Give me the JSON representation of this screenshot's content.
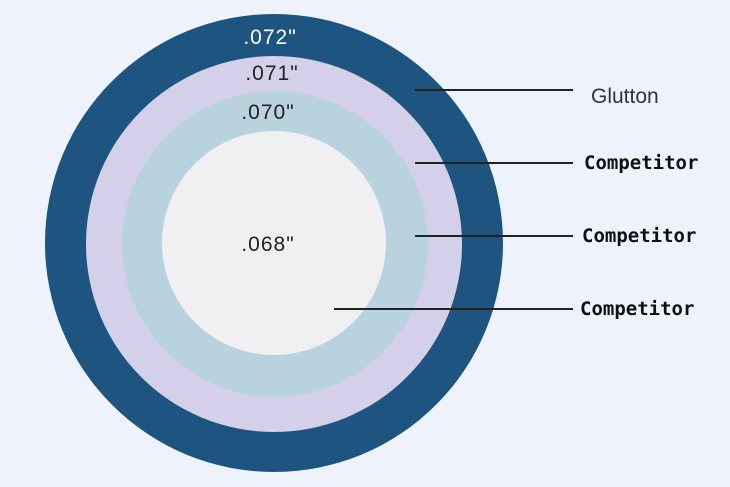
{
  "colors": {
    "background": "#eef3fb",
    "outer": "#1e5580",
    "ring2": "#d4d0e9",
    "ring3": "#b9d3de",
    "inner": "#f0f0f3"
  },
  "rings": [
    {
      "dimension": ".072\"",
      "label": "Glutton"
    },
    {
      "dimension": ".071\"",
      "label": "Competitor"
    },
    {
      "dimension": ".070\"",
      "label": "Competitor"
    },
    {
      "dimension": ".068\"",
      "label": "Competitor"
    }
  ]
}
